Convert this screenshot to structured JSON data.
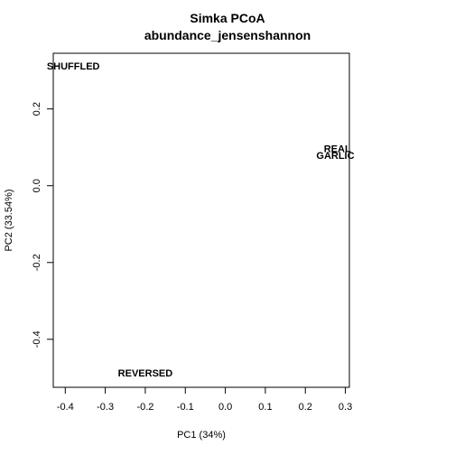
{
  "chart_data": {
    "type": "scatter",
    "title": "Simka PCoA",
    "subtitle": "abundance_jensenshannon",
    "xlabel": "PC1 (34%)",
    "ylabel": "PC2 (33.54%)",
    "xlim": [
      -0.43,
      0.31
    ],
    "ylim": [
      -0.525,
      0.345
    ],
    "xticks": [
      -0.4,
      -0.3,
      -0.2,
      -0.1,
      0.0,
      0.1,
      0.2,
      0.3
    ],
    "xtick_labels": [
      "-0.4",
      "-0.3",
      "-0.2",
      "-0.1",
      "0.0",
      "0.1",
      "0.2",
      "0.3"
    ],
    "yticks": [
      -0.4,
      -0.2,
      0.0,
      0.2
    ],
    "ytick_labels": [
      "-0.4",
      "-0.2",
      "0.0",
      "0.2"
    ],
    "grid": false,
    "points": [
      {
        "label": "SHUFFLED",
        "x": -0.38,
        "y": 0.31
      },
      {
        "label": "REAL",
        "x": 0.28,
        "y": 0.095
      },
      {
        "label": "GARLIC",
        "x": 0.275,
        "y": 0.077
      },
      {
        "label": "REVERSED",
        "x": -0.2,
        "y": -0.49
      }
    ]
  }
}
